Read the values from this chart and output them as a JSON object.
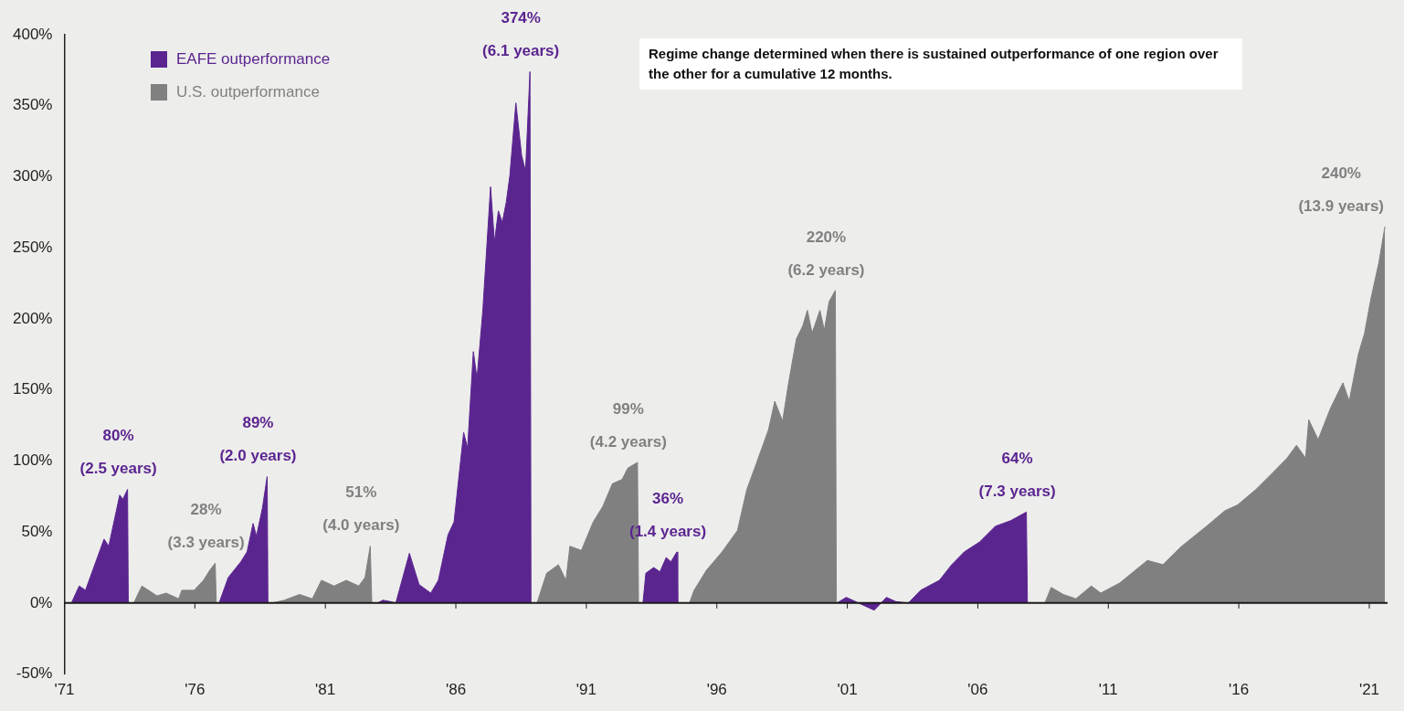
{
  "chart_data": {
    "type": "area",
    "legend": "top left",
    "xlim": [
      1971,
      2021.7
    ],
    "ylim": [
      -50,
      400
    ],
    "xticks": [
      {
        "value": 1971,
        "label": "'71"
      },
      {
        "value": 1976,
        "label": "'76"
      },
      {
        "value": 1981,
        "label": "'81"
      },
      {
        "value": 1986,
        "label": "'86"
      },
      {
        "value": 1991,
        "label": "'91"
      },
      {
        "value": 1996,
        "label": "'96"
      },
      {
        "value": 2001,
        "label": "'01"
      },
      {
        "value": 2006,
        "label": "'06"
      },
      {
        "value": 2011,
        "label": "'11"
      },
      {
        "value": 2016,
        "label": "'16"
      },
      {
        "value": 2021,
        "label": "'21"
      }
    ],
    "yticks": [
      {
        "value": -50,
        "label": "-50%"
      },
      {
        "value": 0,
        "label": "0%"
      },
      {
        "value": 50,
        "label": "50%"
      },
      {
        "value": 100,
        "label": "100%"
      },
      {
        "value": 150,
        "label": "150%"
      },
      {
        "value": 200,
        "label": "200%"
      },
      {
        "value": 250,
        "label": "250%"
      },
      {
        "value": 300,
        "label": "300%"
      },
      {
        "value": 350,
        "label": "350%"
      },
      {
        "value": 400,
        "label": "400%"
      }
    ],
    "ref_lines": [
      {
        "axis": "y",
        "value": 0,
        "color": "#1a1a1a"
      }
    ],
    "series": [
      {
        "name": "EAFE outperformance",
        "color": "#5b2590",
        "x": [
          1971.27,
          1971.57,
          1971.81,
          1972.52,
          1972.7,
          1973.12,
          1973.24,
          1973.42,
          1973.45,
          1975,
          1976.93,
          1977.28,
          1977.76,
          1978.0,
          1978.23,
          1978.36,
          1978.59,
          1978.77,
          1978.8,
          1981,
          1983.0,
          1983.2,
          1983.5,
          1983.7,
          1984.22,
          1984.59,
          1985.04,
          1985.33,
          1985.7,
          1985.93,
          1986.3,
          1986.45,
          1986.67,
          1986.81,
          1987.03,
          1987.33,
          1987.48,
          1987.63,
          1987.78,
          1987.93,
          1988.07,
          1988.3,
          1988.52,
          1988.67,
          1988.84,
          1988.88,
          1991,
          1993.17,
          1993.28,
          1993.58,
          1993.82,
          1994.06,
          1994.24,
          1994.47,
          1994.5,
          1997,
          2000.6,
          2000.96,
          2001.2,
          2001.43,
          2002.03,
          2002.5,
          2002.86,
          2003.34,
          2003.81,
          2004.53,
          2005.0,
          2005.48,
          2006.07,
          2006.67,
          2007.26,
          2007.86,
          2007.9
        ],
        "values": [
          0,
          12,
          9,
          45,
          40,
          76,
          73,
          80,
          0,
          null,
          0,
          18,
          29,
          36,
          56,
          47,
          67,
          89,
          0,
          null,
          0,
          2,
          1,
          0,
          35,
          13,
          7,
          16,
          48,
          57,
          120,
          109,
          177,
          158,
          205,
          293,
          254,
          276,
          268,
          282,
          301,
          352,
          315,
          304,
          374,
          0,
          null,
          0,
          21,
          25,
          22,
          32,
          29,
          36,
          0,
          null,
          0,
          4,
          2,
          0,
          -5,
          4,
          1,
          0,
          9,
          16,
          27,
          36,
          43,
          54,
          58,
          64,
          0
        ]
      },
      {
        "name": "U.S. outperformance",
        "color": "#808080",
        "x": [
          1973.66,
          1973.97,
          1974.55,
          1974.9,
          1975.38,
          1975.5,
          1975.97,
          1976.33,
          1976.57,
          1976.78,
          1976.82,
          1977.5,
          1978.95,
          1979.43,
          1980.01,
          1980.5,
          1980.85,
          1981.33,
          1981.8,
          1982.28,
          1982.52,
          1982.72,
          1982.78,
          1985,
          1989.11,
          1989.48,
          1989.93,
          1990.22,
          1990.37,
          1990.81,
          1991.26,
          1991.63,
          1992.0,
          1992.37,
          1992.59,
          1992.96,
          1993.0,
          1994,
          1994.95,
          1995.13,
          1995.6,
          1996.2,
          1996.79,
          1997.15,
          1997.51,
          1997.98,
          1998.22,
          1998.52,
          1998.75,
          1999.05,
          1999.29,
          1999.47,
          1999.65,
          1999.95,
          2000.12,
          2000.3,
          2000.54,
          2000.58,
          2004,
          2008.57,
          2008.81,
          2009.28,
          2009.76,
          2010.35,
          2010.71,
          2011.43,
          2012.5,
          2013.09,
          2013.81,
          2014.76,
          2015.47,
          2015.95,
          2016.66,
          2017.26,
          2017.85,
          2018.21,
          2018.56,
          2018.68,
          2019.04,
          2019.51,
          2019.99,
          2020.23,
          2020.58,
          2020.82,
          2021.06,
          2021.36,
          2021.6
        ],
        "values": [
          0,
          12,
          5,
          7,
          3,
          9,
          9,
          16,
          23,
          28,
          0,
          null,
          0,
          2,
          6,
          3,
          16,
          12,
          16,
          12,
          18,
          40,
          0,
          null,
          0,
          21,
          27,
          16,
          40,
          37,
          57,
          68,
          84,
          87,
          95,
          99,
          0,
          null,
          0,
          9,
          23,
          36,
          51,
          80,
          98,
          122,
          142,
          128,
          155,
          186,
          195,
          206,
          190,
          206,
          192,
          212,
          220,
          0,
          null,
          0,
          11,
          6,
          3,
          12,
          7,
          14,
          30,
          27,
          40,
          54,
          65,
          69,
          80,
          91,
          102,
          111,
          102,
          129,
          115,
          137,
          155,
          142,
          175,
          190,
          214,
          239,
          265
        ]
      }
    ],
    "annotations": [
      "Regime change determined when there is sustained outperformance of one region over the other for a cumulative 12 months.",
      {
        "text": "80%\n(2.5 years)",
        "x": 1973.42,
        "y": 80
      },
      {
        "text": "28%\n(3.3 years)",
        "x": 1976.78,
        "y": 28
      },
      {
        "text": "89%\n(2.0 years)",
        "x": 1978.77,
        "y": 89
      },
      {
        "text": "51%\n(4.0 years)",
        "x": 1982.72,
        "y": 40
      },
      {
        "text": "374%\n(6.1 years)",
        "x": 1988.84,
        "y": 374
      },
      {
        "text": "99%\n(4.2 years)",
        "x": 1992.96,
        "y": 99
      },
      {
        "text": "36%\n(1.4 years)",
        "x": 1994.47,
        "y": 36
      },
      {
        "text": "220%\n(6.2 years)",
        "x": 2000.54,
        "y": 220
      },
      {
        "text": "64%\n(7.3 years)",
        "x": 2007.86,
        "y": 64
      },
      {
        "text": "240%\n(13.9 years)",
        "x": 2021.6,
        "y": 265
      }
    ]
  }
}
